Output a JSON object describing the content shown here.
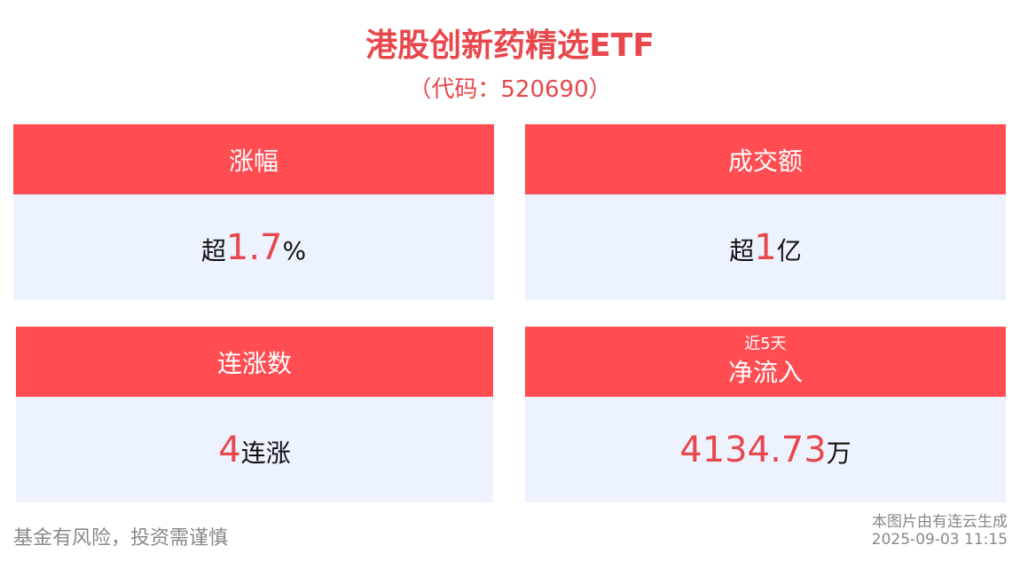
{
  "header": {
    "title": "港股创新药精选ETF",
    "code": "（代码：520690）"
  },
  "cards": [
    {
      "label": "涨幅",
      "prefix": "超",
      "number": "1.7",
      "suffix": "%"
    },
    {
      "label": "成交额",
      "prefix": "超",
      "number": "1",
      "suffix": "亿"
    },
    {
      "label": "连涨数",
      "number": "4",
      "suffix": "连涨"
    },
    {
      "note": "近5天",
      "label": "净流入",
      "number": "4134.73",
      "suffix": "万"
    }
  ],
  "footer": {
    "disclaimer": "基金有风险，投资需谨慎",
    "source": "本图片由有连云生成",
    "timestamp": "2025-09-03 11:15"
  }
}
